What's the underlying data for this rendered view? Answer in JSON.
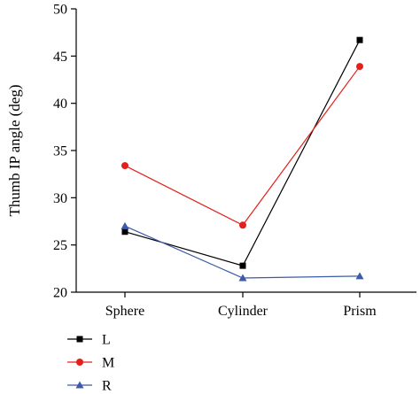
{
  "chart_data": {
    "type": "line",
    "categories": [
      "Sphere",
      "Cylinder",
      "Prism"
    ],
    "ylabel": "Thumb IP angle (deg)",
    "xlabel": "",
    "ylim": [
      20,
      50
    ],
    "yticks": [
      20,
      25,
      30,
      35,
      40,
      45,
      50
    ],
    "grid": false,
    "legend_position": "bottom-left",
    "series": [
      {
        "name": "L",
        "values": [
          26.4,
          22.8,
          46.7
        ],
        "color": "#000000",
        "marker": "square"
      },
      {
        "name": "M",
        "values": [
          33.4,
          27.1,
          43.9
        ],
        "color": "#e3201b",
        "marker": "circle"
      },
      {
        "name": "R",
        "values": [
          27.0,
          21.5,
          21.7
        ],
        "color": "#3c5aa6",
        "marker": "triangle"
      }
    ]
  }
}
